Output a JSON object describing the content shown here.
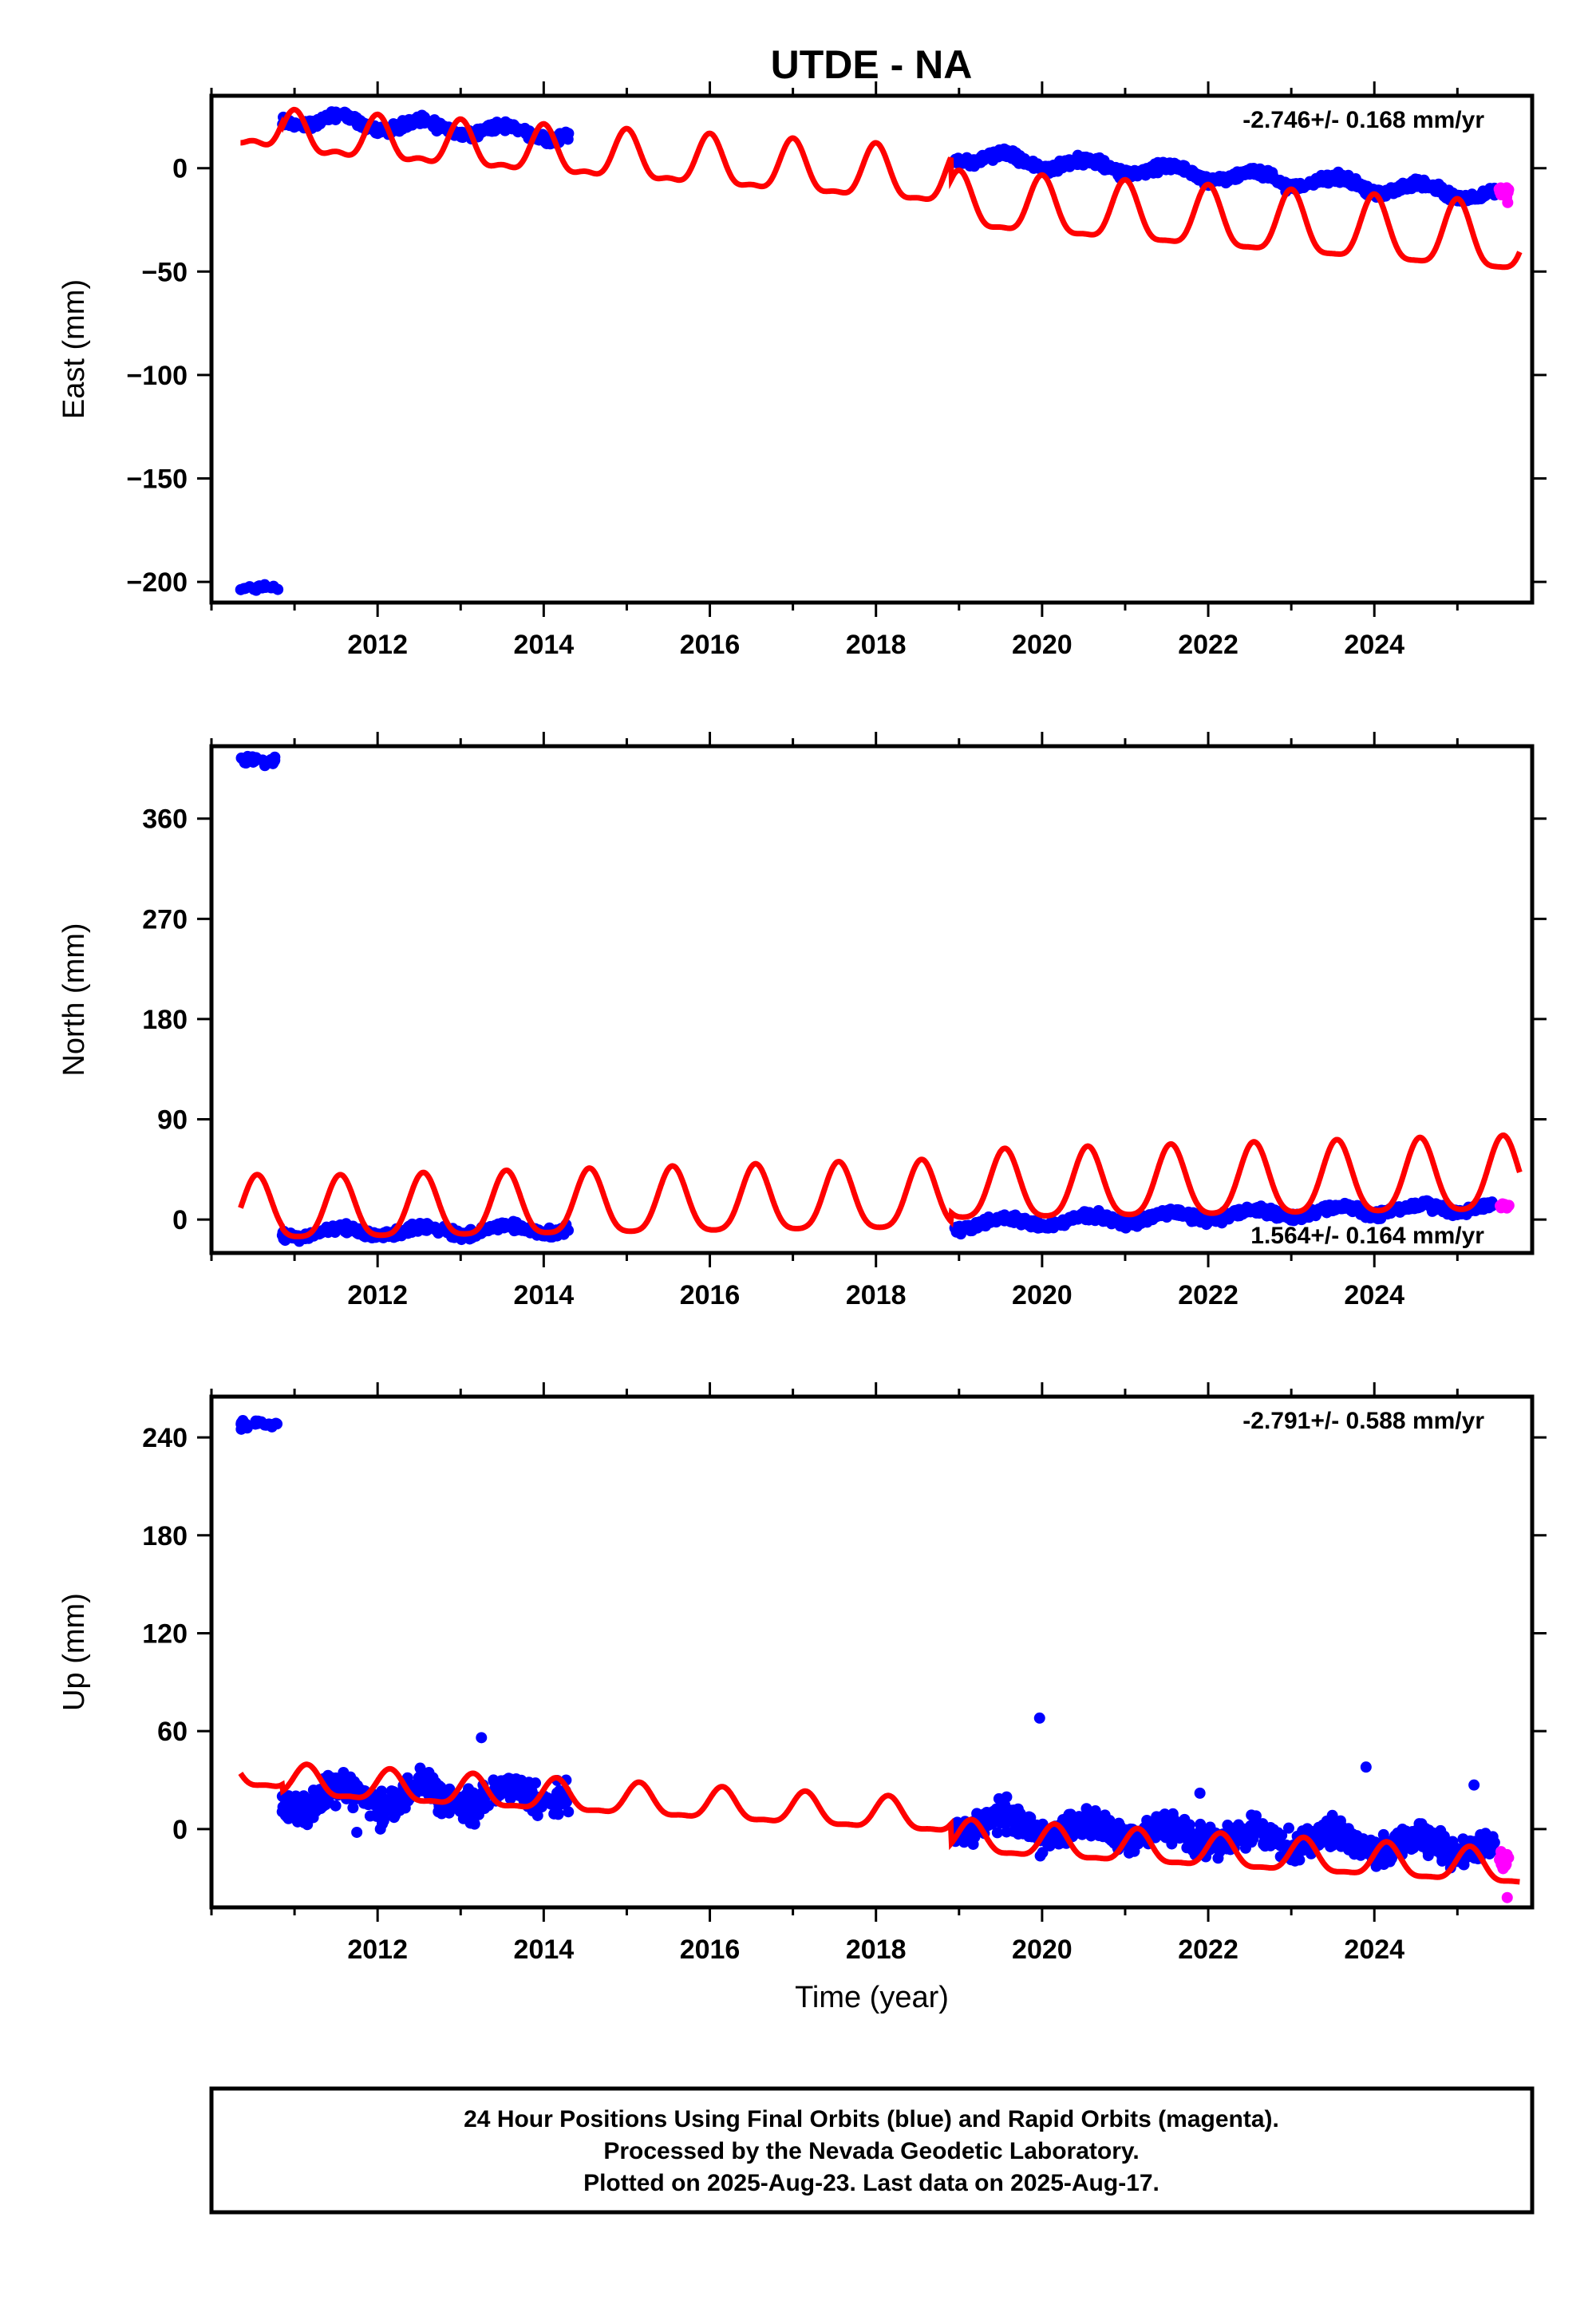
{
  "title": "UTDE - NA",
  "footer": {
    "line1": "24 Hour Positions Using Final Orbits (blue) and Rapid Orbits (magenta).",
    "line2": "Processed by the Nevada Geodetic Laboratory.",
    "line3": "Plotted on 2025-Aug-23. Last data on 2025-Aug-17."
  },
  "colors": {
    "final_orbits": "#0000ff",
    "rapid_orbits": "#ff00ff",
    "model_fit": "#ff0000",
    "frame": "#000000"
  },
  "chart_data": [
    {
      "type": "scatter",
      "component": "east",
      "ylabel": "East (mm)",
      "xlabel": "",
      "rate_text": "-2.746+/- 0.168 mm/yr",
      "rate_position": "top-right",
      "xlim": [
        2010.0,
        2025.9
      ],
      "ylim": [
        -210,
        35
      ],
      "xticks": [
        2012,
        2014,
        2016,
        2018,
        2020,
        2022,
        2024
      ],
      "yticks": [
        0,
        -50,
        -100,
        -150,
        -200
      ],
      "ytick_labels": [
        "0",
        "−50",
        "−100",
        "−150",
        "−200"
      ],
      "grid": false,
      "outlier_cluster": {
        "x_start": 2010.35,
        "x_end": 2010.8,
        "y": -203
      },
      "data_segments": [
        {
          "x_start": 2010.85,
          "x_end": 2014.3,
          "y_start": 24,
          "y_end": 16,
          "amplitude": 3,
          "scatter": 1.5
        },
        {
          "x_start": 2018.95,
          "x_end": 2025.45,
          "y_start": 6,
          "y_end": -13,
          "amplitude": 3,
          "scatter": 1.5
        }
      ],
      "rapid_points": {
        "x_start": 2025.5,
        "x_end": 2025.62,
        "y": -12,
        "scatter": 4
      },
      "model": {
        "offsets": [
          {
            "x": 2010.0,
            "y": 17
          },
          {
            "x": 2010.85,
            "y": 15
          },
          {
            "x": 2018.9,
            "y": 4
          }
        ],
        "slope": -2.746,
        "t0": 2011.0,
        "annual_amp_start": 9,
        "annual_amp_end": 16,
        "semiannual_amp": 4,
        "phase": 0.0
      }
    },
    {
      "type": "scatter",
      "component": "north",
      "ylabel": "North (mm)",
      "xlabel": "",
      "rate_text": "1.564+/- 0.164 mm/yr",
      "rate_position": "bottom-right",
      "xlim": [
        2010.0,
        2025.9
      ],
      "ylim": [
        -30,
        425
      ],
      "xticks": [
        2012,
        2014,
        2016,
        2018,
        2020,
        2022,
        2024
      ],
      "yticks": [
        0,
        90,
        180,
        270,
        360
      ],
      "ytick_labels": [
        "0",
        "90",
        "180",
        "270",
        "360"
      ],
      "grid": false,
      "outlier_cluster": {
        "x_start": 2010.35,
        "x_end": 2010.8,
        "y": 412
      },
      "data_segments": [
        {
          "x_start": 2010.85,
          "x_end": 2014.3,
          "y_start": -12,
          "y_end": -8,
          "amplitude": 4,
          "scatter": 2.5
        },
        {
          "x_start": 2018.95,
          "x_end": 2025.45,
          "y_start": -4,
          "y_end": 12,
          "amplitude": 4,
          "scatter": 2.5
        }
      ],
      "rapid_points": {
        "x_start": 2025.5,
        "x_end": 2025.62,
        "y": 12,
        "scatter": 2
      },
      "model": {
        "offsets": [
          {
            "x": 2010.0,
            "y": 8
          },
          {
            "x": 2010.85,
            "y": 6
          },
          {
            "x": 2018.9,
            "y": 14
          }
        ],
        "slope": 1.564,
        "t0": 2011.0,
        "annual_amp_start": 27,
        "annual_amp_end": 33,
        "semiannual_amp": 6,
        "phase": 0.55
      }
    },
    {
      "type": "scatter",
      "component": "up",
      "ylabel": "Up (mm)",
      "xlabel": "Time (year)",
      "rate_text": "-2.791+/- 0.588 mm/yr",
      "rate_position": "top-right",
      "xlim": [
        2010.0,
        2025.9
      ],
      "ylim": [
        -48,
        265
      ],
      "xticks": [
        2012,
        2014,
        2016,
        2018,
        2020,
        2022,
        2024
      ],
      "yticks": [
        0,
        60,
        120,
        180,
        240
      ],
      "ytick_labels": [
        "0",
        "60",
        "120",
        "180",
        "240"
      ],
      "grid": false,
      "outlier_cluster": {
        "x_start": 2010.35,
        "x_end": 2010.8,
        "y": 248
      },
      "data_segments": [
        {
          "x_start": 2010.85,
          "x_end": 2014.3,
          "y_start": 18,
          "y_end": 22,
          "amplitude": 6,
          "scatter": 7
        },
        {
          "x_start": 2018.95,
          "x_end": 2025.45,
          "y_start": 4,
          "y_end": -12,
          "amplitude": 5,
          "scatter": 6
        }
      ],
      "rapid_points": {
        "x_start": 2025.5,
        "x_end": 2025.62,
        "y": -20,
        "scatter": 4
      },
      "extra_points": [
        {
          "x": 2013.25,
          "y": 56
        },
        {
          "x": 2011.75,
          "y": -2
        },
        {
          "x": 2019.97,
          "y": 68
        },
        {
          "x": 2023.9,
          "y": 38
        },
        {
          "x": 2025.2,
          "y": 27
        },
        {
          "x": 2021.9,
          "y": 22
        },
        {
          "x": 2025.6,
          "y": -42
        }
      ],
      "model": {
        "offsets": [
          {
            "x": 2010.0,
            "y": 32
          },
          {
            "x": 2010.85,
            "y": 28
          },
          {
            "x": 2018.9,
            "y": 16
          }
        ],
        "slope": -2.791,
        "t0": 2011.0,
        "annual_amp_start": 9,
        "annual_amp_end": 10,
        "semiannual_amp": 3,
        "phase": 0.15
      }
    }
  ]
}
